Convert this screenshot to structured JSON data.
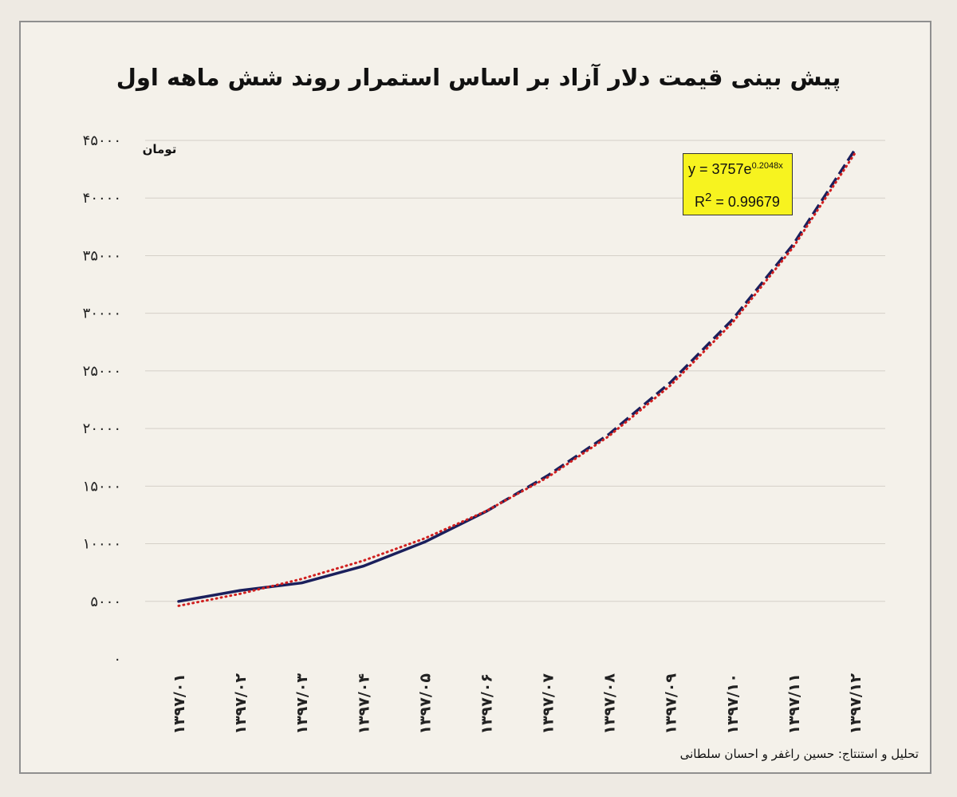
{
  "chart_data": {
    "type": "line",
    "title": "پیش بینی قیمت دلار آزاد بر اساس استمرار روند شش ماهه اول",
    "ylabel": "تومان",
    "xlabel": "",
    "ylim": [
      0,
      45000
    ],
    "y_ticks": [
      0,
      5000,
      10000,
      15000,
      20000,
      25000,
      30000,
      35000,
      40000,
      45000
    ],
    "y_tick_labels": [
      "۰",
      "۵۰۰۰",
      "۱۰۰۰۰",
      "۱۵۰۰۰",
      "۲۰۰۰۰",
      "۲۵۰۰۰",
      "۳۰۰۰۰",
      "۳۵۰۰۰",
      "۴۰۰۰۰",
      "۴۵۰۰۰"
    ],
    "categories": [
      "۱۳۹۷/۰۱",
      "۱۳۹۷/۰۲",
      "۱۳۹۷/۰۳",
      "۱۳۹۷/۰۴",
      "۱۳۹۷/۰۵",
      "۱۳۹۷/۰۶",
      "۱۳۹۷/۰۷",
      "۱۳۹۷/۰۸",
      "۱۳۹۷/۰۹",
      "۱۳۹۷/۱۰",
      "۱۳۹۷/۱۱",
      "۱۳۹۷/۱۲"
    ],
    "grid": true,
    "series": [
      {
        "style": "solid",
        "color": "#1a1f5c",
        "values": [
          5000,
          5950,
          6600,
          8050,
          10150,
          12800,
          null,
          null,
          null,
          null,
          null,
          null
        ]
      },
      {
        "style": "dashed",
        "color": "#1a1f5c",
        "values": [
          null,
          null,
          null,
          null,
          null,
          12800,
          15900,
          19500,
          24000,
          29400,
          36000,
          44200
        ]
      },
      {
        "style": "dotted",
        "color": "#d01f1f",
        "values": [
          4609,
          5657,
          6944,
          8523,
          10460,
          12838,
          15757,
          19340,
          23737,
          29134,
          35758,
          43888
        ]
      }
    ],
    "annotation": {
      "equation": {
        "base": "y = 3757e",
        "exponent": "0.2048x"
      },
      "r2": {
        "label": "R",
        "power": "2",
        "value": " = 0.99679"
      }
    }
  },
  "credit": "تحلیل و استنتاج: حسین راغفر و احسان سلطانی"
}
